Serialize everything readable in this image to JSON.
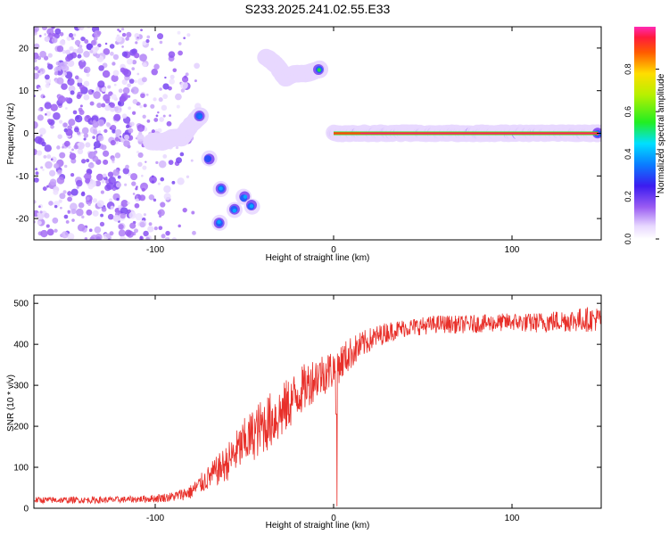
{
  "figure": {
    "title": "S233.2025.241.02.55.E33"
  },
  "chart_data": [
    {
      "type": "heatmap",
      "xlabel": "Height of straight line (km)",
      "ylabel": "Frequency (Hz)",
      "xlim": [
        -168,
        150
      ],
      "ylim": [
        -25,
        25
      ],
      "xticks": [
        -100,
        0,
        100
      ],
      "yticks": [
        -20,
        -10,
        0,
        10,
        20
      ],
      "grid": false,
      "colorbar": {
        "label": "Normalized spectral amplitude",
        "range": [
          0,
          1
        ],
        "ticks": [
          0.0,
          0.2,
          0.4,
          0.6,
          0.8
        ],
        "colormap": "rainbow (white-violet-blue-cyan-green-yellow-red-magenta)"
      },
      "features": [
        {
          "region": "noise",
          "x_range": [
            -168,
            -80
          ],
          "f_range": [
            -25,
            25
          ],
          "amplitude": 0.15
        },
        {
          "region": "ridge",
          "points": [
            [
              -102,
              -2
            ],
            [
              -95,
              -2
            ],
            [
              -90,
              -1
            ],
            [
              -85,
              -1
            ],
            [
              -80,
              2
            ],
            [
              -75,
              4
            ]
          ],
          "amplitude": 0.35
        },
        {
          "region": "blob",
          "points": [
            [
              -70,
              -6
            ]
          ],
          "amplitude": 0.3
        },
        {
          "region": "blobs",
          "points": [
            [
              -63,
              -13
            ],
            [
              -56,
              -18
            ],
            [
              -50,
              -15
            ],
            [
              -46,
              -17
            ],
            [
              -64,
              -21
            ]
          ],
          "amplitude": 0.4
        },
        {
          "region": "ridge",
          "points": [
            [
              -38,
              18
            ],
            [
              -32,
              16
            ],
            [
              -27,
              13
            ],
            [
              -22,
              14
            ],
            [
              -15,
              14
            ],
            [
              -8,
              15
            ]
          ],
          "amplitude": 0.55
        },
        {
          "region": "ridge",
          "points": [
            [
              0,
              0
            ],
            [
              30,
              0
            ],
            [
              60,
              0
            ],
            [
              90,
              0
            ],
            [
              120,
              0
            ],
            [
              148,
              0
            ]
          ],
          "amplitude": 0.98
        }
      ]
    },
    {
      "type": "line",
      "xlabel": "Height of straight line (km)",
      "ylabel": "SNR (10 * v/v)",
      "xlim": [
        -168,
        150
      ],
      "ylim": [
        0,
        520
      ],
      "xticks": [
        -100,
        0,
        100
      ],
      "yticks": [
        0,
        100,
        200,
        300,
        400,
        500
      ],
      "grid": false,
      "color": "#e8302a",
      "x": [
        -168,
        -150,
        -130,
        -110,
        -100,
        -90,
        -80,
        -70,
        -60,
        -50,
        -40,
        -30,
        -20,
        -10,
        0,
        10,
        20,
        30,
        40,
        50,
        60,
        70,
        80,
        90,
        100,
        110,
        120,
        130,
        140,
        150
      ],
      "y": [
        20,
        20,
        20,
        22,
        24,
        28,
        40,
        75,
        110,
        160,
        200,
        230,
        280,
        320,
        340,
        380,
        410,
        430,
        440,
        445,
        450,
        448,
        450,
        452,
        455,
        452,
        455,
        458,
        460,
        462
      ],
      "noise_amplitude": [
        8,
        8,
        8,
        8,
        10,
        12,
        18,
        30,
        45,
        60,
        70,
        70,
        60,
        55,
        50,
        40,
        30,
        25,
        22,
        22,
        22,
        22,
        22,
        22,
        22,
        24,
        26,
        28,
        30,
        30
      ],
      "annotations": [
        {
          "x": 1.5,
          "y_min": 5,
          "y_max": 230,
          "note": "narrow dip near 0 km"
        }
      ]
    }
  ]
}
